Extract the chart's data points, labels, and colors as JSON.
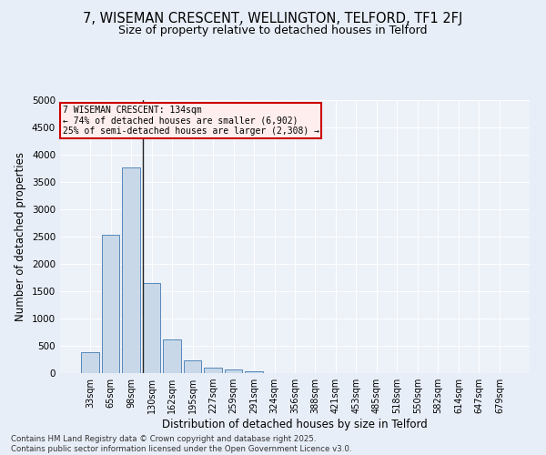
{
  "title": "7, WISEMAN CRESCENT, WELLINGTON, TELFORD, TF1 2FJ",
  "subtitle": "Size of property relative to detached houses in Telford",
  "xlabel": "Distribution of detached houses by size in Telford",
  "ylabel": "Number of detached properties",
  "bar_color": "#c8d8e8",
  "bar_edge_color": "#5588bb",
  "categories": [
    "33sqm",
    "65sqm",
    "98sqm",
    "130sqm",
    "162sqm",
    "195sqm",
    "227sqm",
    "259sqm",
    "291sqm",
    "324sqm",
    "356sqm",
    "388sqm",
    "421sqm",
    "453sqm",
    "485sqm",
    "518sqm",
    "550sqm",
    "582sqm",
    "614sqm",
    "647sqm",
    "679sqm"
  ],
  "values": [
    380,
    2530,
    3760,
    1650,
    610,
    230,
    105,
    60,
    35,
    0,
    0,
    0,
    0,
    0,
    0,
    0,
    0,
    0,
    0,
    0,
    0
  ],
  "ylim": [
    0,
    5000
  ],
  "yticks": [
    0,
    500,
    1000,
    1500,
    2000,
    2500,
    3000,
    3500,
    4000,
    4500,
    5000
  ],
  "property_line_x": 3,
  "annotation_title": "7 WISEMAN CRESCENT: 134sqm",
  "annotation_line1": "← 74% of detached houses are smaller (6,902)",
  "annotation_line2": "25% of semi-detached houses are larger (2,308) →",
  "annotation_box_color": "#ffeeee",
  "annotation_box_edge": "#cc0000",
  "footer_line1": "Contains HM Land Registry data © Crown copyright and database right 2025.",
  "footer_line2": "Contains public sector information licensed under the Open Government Licence v3.0.",
  "bg_color": "#e8eef8",
  "plot_bg_color": "#edf1f8"
}
